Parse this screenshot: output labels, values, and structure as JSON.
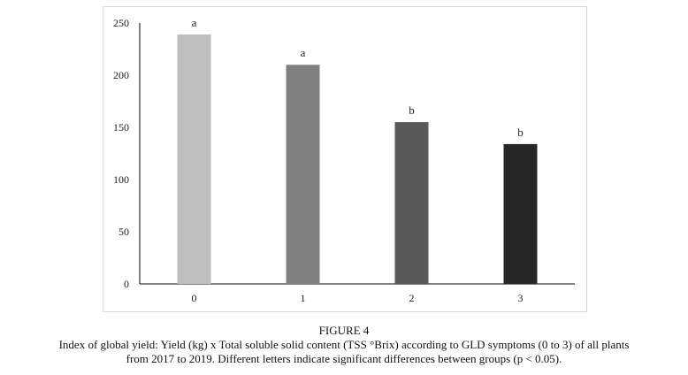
{
  "chart_data": {
    "type": "bar",
    "categories": [
      "0",
      "1",
      "2",
      "3"
    ],
    "values": [
      239,
      210,
      155,
      134
    ],
    "letters": [
      "a",
      "a",
      "b",
      "b"
    ],
    "colors": [
      "#bfbfbf",
      "#808080",
      "#595959",
      "#262626"
    ],
    "ylim": [
      0,
      250
    ],
    "yticks": [
      "0",
      "50",
      "100",
      "150",
      "200",
      "250"
    ],
    "grid": false
  },
  "figure": {
    "label": "FIGURE 4",
    "caption_line1": "Index of global yield: Yield (kg) x Total soluble solid content (TSS °Brix) according to GLD symptoms (0 to 3) of all plants",
    "caption_line2": "from 2017 to 2019. Different letters indicate significant differences between groups (p < 0.05)."
  }
}
